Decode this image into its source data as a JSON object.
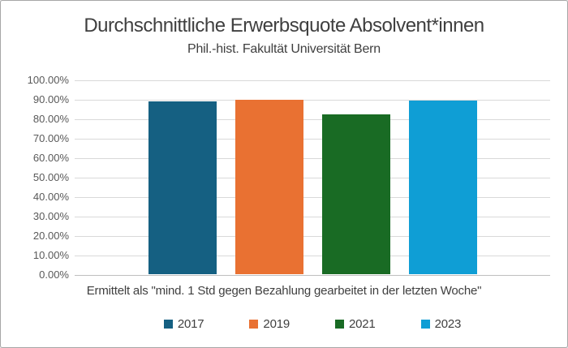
{
  "window": {
    "background": "#ffffff",
    "border_color": "#a6a6a6"
  },
  "header": {
    "title": "Durchschnittliche Erwerbsquote Absolvent*innen",
    "subtitle": "Phil.-hist. Fakultät Universität Bern"
  },
  "axis": {
    "y_tick_labels": [
      "100.00%",
      "90.00%",
      "80.00%",
      "70.00%",
      "60.00%",
      "50.00%",
      "40.00%",
      "30.00%",
      "20.00%",
      "10.00%",
      "0.00%"
    ],
    "category_note": "Ermittelt als \"mind. 1 Std gegen Bezahlung gearbeitet in der letzten Woche\"",
    "gridline_color": "#d9d9d9",
    "axis_line_color": "#bfbfbf",
    "tick_text_color": "#595959"
  },
  "legend": {
    "position": "bottom",
    "items": [
      {
        "label": "2017",
        "color": "#156082"
      },
      {
        "label": "2019",
        "color": "#E97132"
      },
      {
        "label": "2021",
        "color": "#196B24"
      },
      {
        "label": "2023",
        "color": "#0F9ED5"
      }
    ]
  },
  "chart_data": {
    "type": "bar",
    "title": "Durchschnittliche Erwerbsquote Absolvent*innen",
    "subtitle": "Phil.-hist. Fakultät Universität Bern",
    "xlabel": "Ermittelt als \"mind. 1 Std gegen Bezahlung gearbeitet in der letzten Woche\"",
    "ylabel": "",
    "ylim": [
      0,
      100
    ],
    "y_tick_step": 10,
    "y_tick_format": "percent_2dp",
    "grid": true,
    "legend_position": "bottom",
    "series": [
      {
        "name": "2017",
        "value": 88.7,
        "color": "#156082"
      },
      {
        "name": "2019",
        "value": 89.4,
        "color": "#E97132"
      },
      {
        "name": "2021",
        "value": 82.2,
        "color": "#196B24"
      },
      {
        "name": "2023",
        "value": 89.0,
        "color": "#0F9ED5"
      }
    ]
  }
}
